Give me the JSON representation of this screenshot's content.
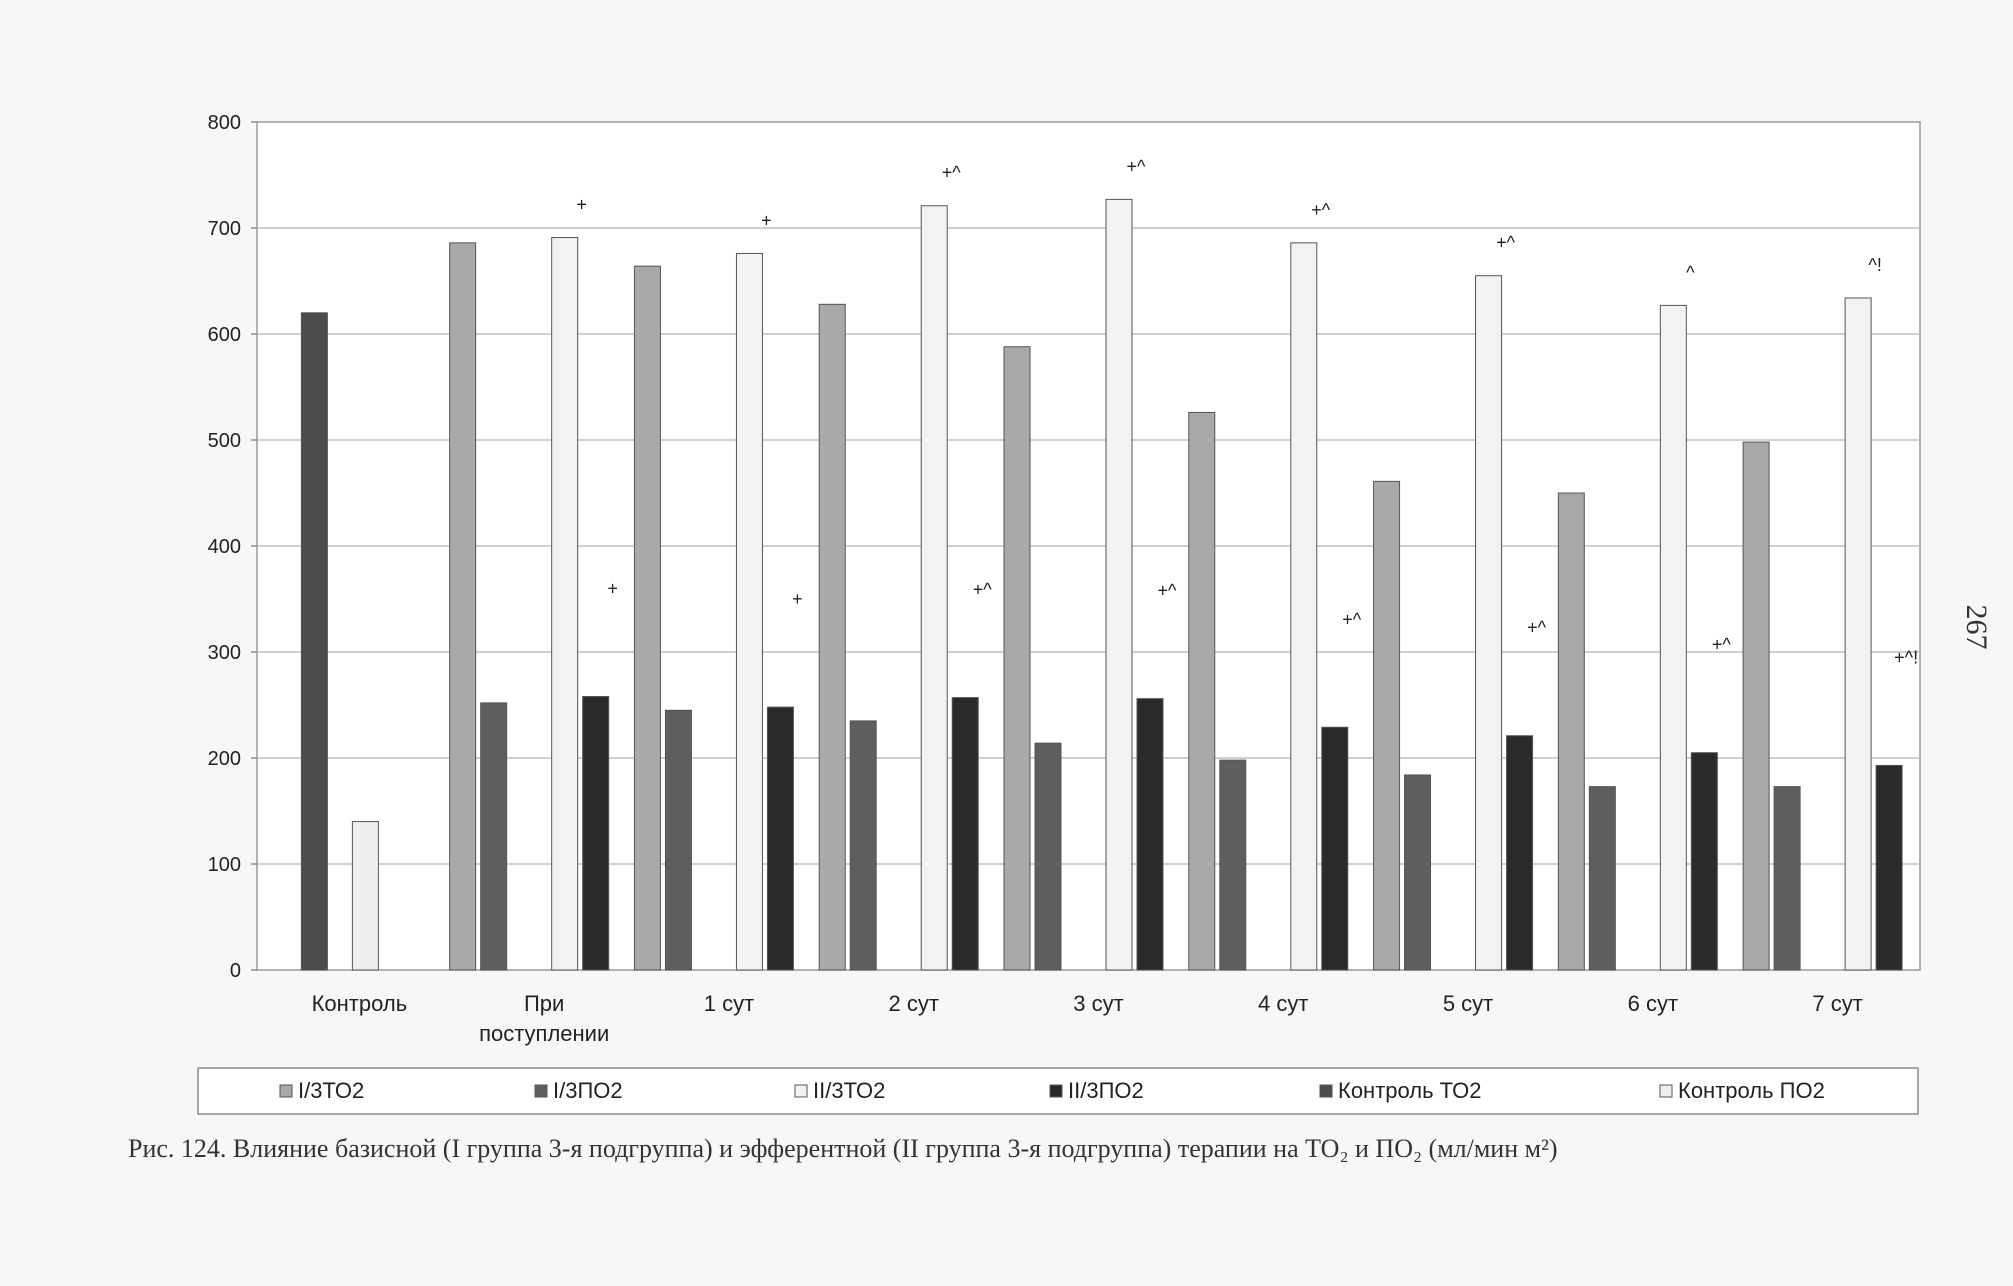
{
  "chart_data": {
    "type": "bar",
    "categories": [
      "Контроль",
      "При поступлении",
      "1 сут",
      "2 сут",
      "3 сут",
      "4 сут",
      "5 сут",
      "6 сут",
      "7 сут"
    ],
    "category_lines": [
      [
        "Контроль"
      ],
      [
        "При",
        "поступлении"
      ],
      [
        "1 сут"
      ],
      [
        "2 сут"
      ],
      [
        "3 сут"
      ],
      [
        "4 сут"
      ],
      [
        "5 сут"
      ],
      [
        "6 сут"
      ],
      [
        "7 сут"
      ]
    ],
    "series": [
      {
        "name": "I/3ТО2",
        "color": "#a9a9a9",
        "values": [
          null,
          686,
          664,
          628,
          588,
          526,
          461,
          450,
          498
        ]
      },
      {
        "name": "I/3ПО2",
        "color": "#5e5e5e",
        "values": [
          null,
          252,
          245,
          235,
          214,
          198,
          184,
          173,
          173
        ]
      },
      {
        "name": "II/3ТО2",
        "color": "#f2f2f2",
        "values": [
          null,
          691,
          676,
          721,
          727,
          686,
          655,
          627,
          634
        ]
      },
      {
        "name": "II/3ПО2",
        "color": "#2a2a2a",
        "values": [
          null,
          258,
          248,
          257,
          256,
          229,
          221,
          205,
          193
        ]
      },
      {
        "name": "Контроль ТО2",
        "color": "#4c4c4c",
        "values": [
          620,
          null,
          null,
          null,
          null,
          null,
          null,
          null,
          null
        ]
      },
      {
        "name": "Контроль ПО2",
        "color": "#efefef",
        "values": [
          140,
          null,
          null,
          null,
          null,
          null,
          null,
          null,
          null
        ]
      }
    ],
    "annotations": [
      {
        "category": "При поступлении",
        "series": "II/3ТО2",
        "text": "+"
      },
      {
        "category": "При поступлении",
        "series": "II/3ПО2",
        "text": "+"
      },
      {
        "category": "1 сут",
        "series": "II/3ТО2",
        "text": "+"
      },
      {
        "category": "1 сут",
        "series": "II/3ПО2",
        "text": "+"
      },
      {
        "category": "2 сут",
        "series": "II/3ТО2",
        "text": "+^"
      },
      {
        "category": "2 сут",
        "series": "II/3ПО2",
        "text": "+^"
      },
      {
        "category": "3 сут",
        "series": "II/3ТО2",
        "text": "+^"
      },
      {
        "category": "3 сут",
        "series": "II/3ПО2",
        "text": "+^"
      },
      {
        "category": "4 сут",
        "series": "II/3ТО2",
        "text": "+^"
      },
      {
        "category": "4 сут",
        "series": "II/3ПО2",
        "text": "+^"
      },
      {
        "category": "5 сут",
        "series": "II/3ТО2",
        "text": "+^"
      },
      {
        "category": "5 сут",
        "series": "II/3ПО2",
        "text": "+^"
      },
      {
        "category": "6 сут",
        "series": "II/3ТО2",
        "text": "^"
      },
      {
        "category": "6 сут",
        "series": "II/3ПО2",
        "text": "+^"
      },
      {
        "category": "7 сут",
        "series": "II/3ТО2",
        "text": "^!"
      },
      {
        "category": "7 сут",
        "series": "II/3ПО2",
        "text": "+^!"
      }
    ],
    "yticks": [
      0,
      100,
      200,
      300,
      400,
      500,
      600,
      700,
      800
    ],
    "ylim": [
      0,
      800
    ],
    "grid": true,
    "legend_position": "bottom"
  },
  "caption": "Рис. 124. Влияние базисной (I группа 3-я подгруппа) и эфферентной (II группа 3-я подгруппа) терапии на ТО₂ и ПО₂ (мл/мин м²)",
  "page_number": "267"
}
